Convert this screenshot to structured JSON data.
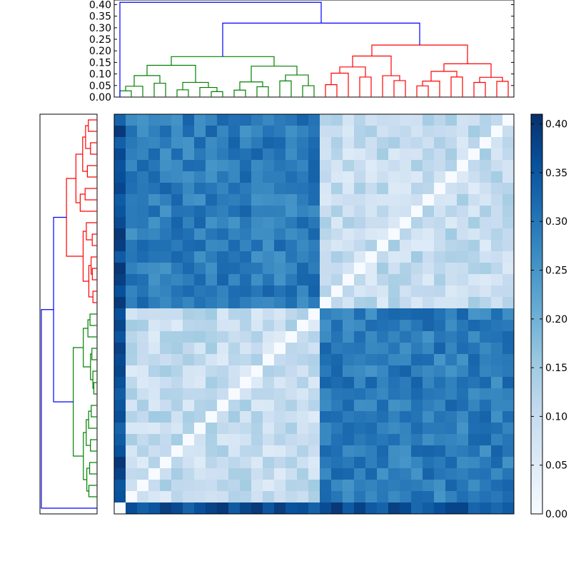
{
  "chart_data": {
    "type": "heatmap",
    "subtype": "clustered heatmap with dendrograms",
    "grid": false,
    "colormap": "Blues",
    "matrix_size": 35,
    "cell_value_range": [
      0.0,
      0.41
    ],
    "cluster_colors": {
      "red": "#ff0000",
      "green": "#008000",
      "blue": "#0000ff"
    },
    "top_dendrogram": {
      "ylim": [
        0,
        0.42
      ],
      "yticks": [
        0.0,
        0.05,
        0.1,
        0.15,
        0.2,
        0.25,
        0.3,
        0.35,
        0.4
      ],
      "ytick_labels": [
        "0.00",
        "0.05",
        "0.10",
        "0.15",
        "0.20",
        "0.25",
        "0.30",
        "0.35",
        "0.40"
      ],
      "root_height": 0.41,
      "cluster_merge_heights": {
        "green": 0.175,
        "red": 0.225,
        "green_red": 0.32
      }
    },
    "left_dendrogram": {
      "root_height": 0.41,
      "cluster_merge_heights": {
        "red": 0.225,
        "green": 0.175,
        "red_green": 0.32
      }
    },
    "colorbar": {
      "ylim": [
        0.0,
        0.41
      ],
      "ticks": [
        0.0,
        0.05,
        0.1,
        0.15,
        0.2,
        0.25,
        0.3,
        0.35,
        0.4
      ],
      "tick_labels": [
        "0.00",
        "0.05",
        "0.10",
        "0.15",
        "0.20",
        "0.25",
        "0.30",
        "0.35",
        "0.40"
      ]
    },
    "blocks": {
      "columns_green_cluster": 18,
      "columns_red_cluster": 17,
      "rows_red_cluster": 17,
      "rows_green_cluster": 17,
      "rows_outlier": 1,
      "within_cluster_mean": 0.1,
      "between_cluster_mean": 0.29,
      "outlier_row_mean": 0.36
    }
  }
}
